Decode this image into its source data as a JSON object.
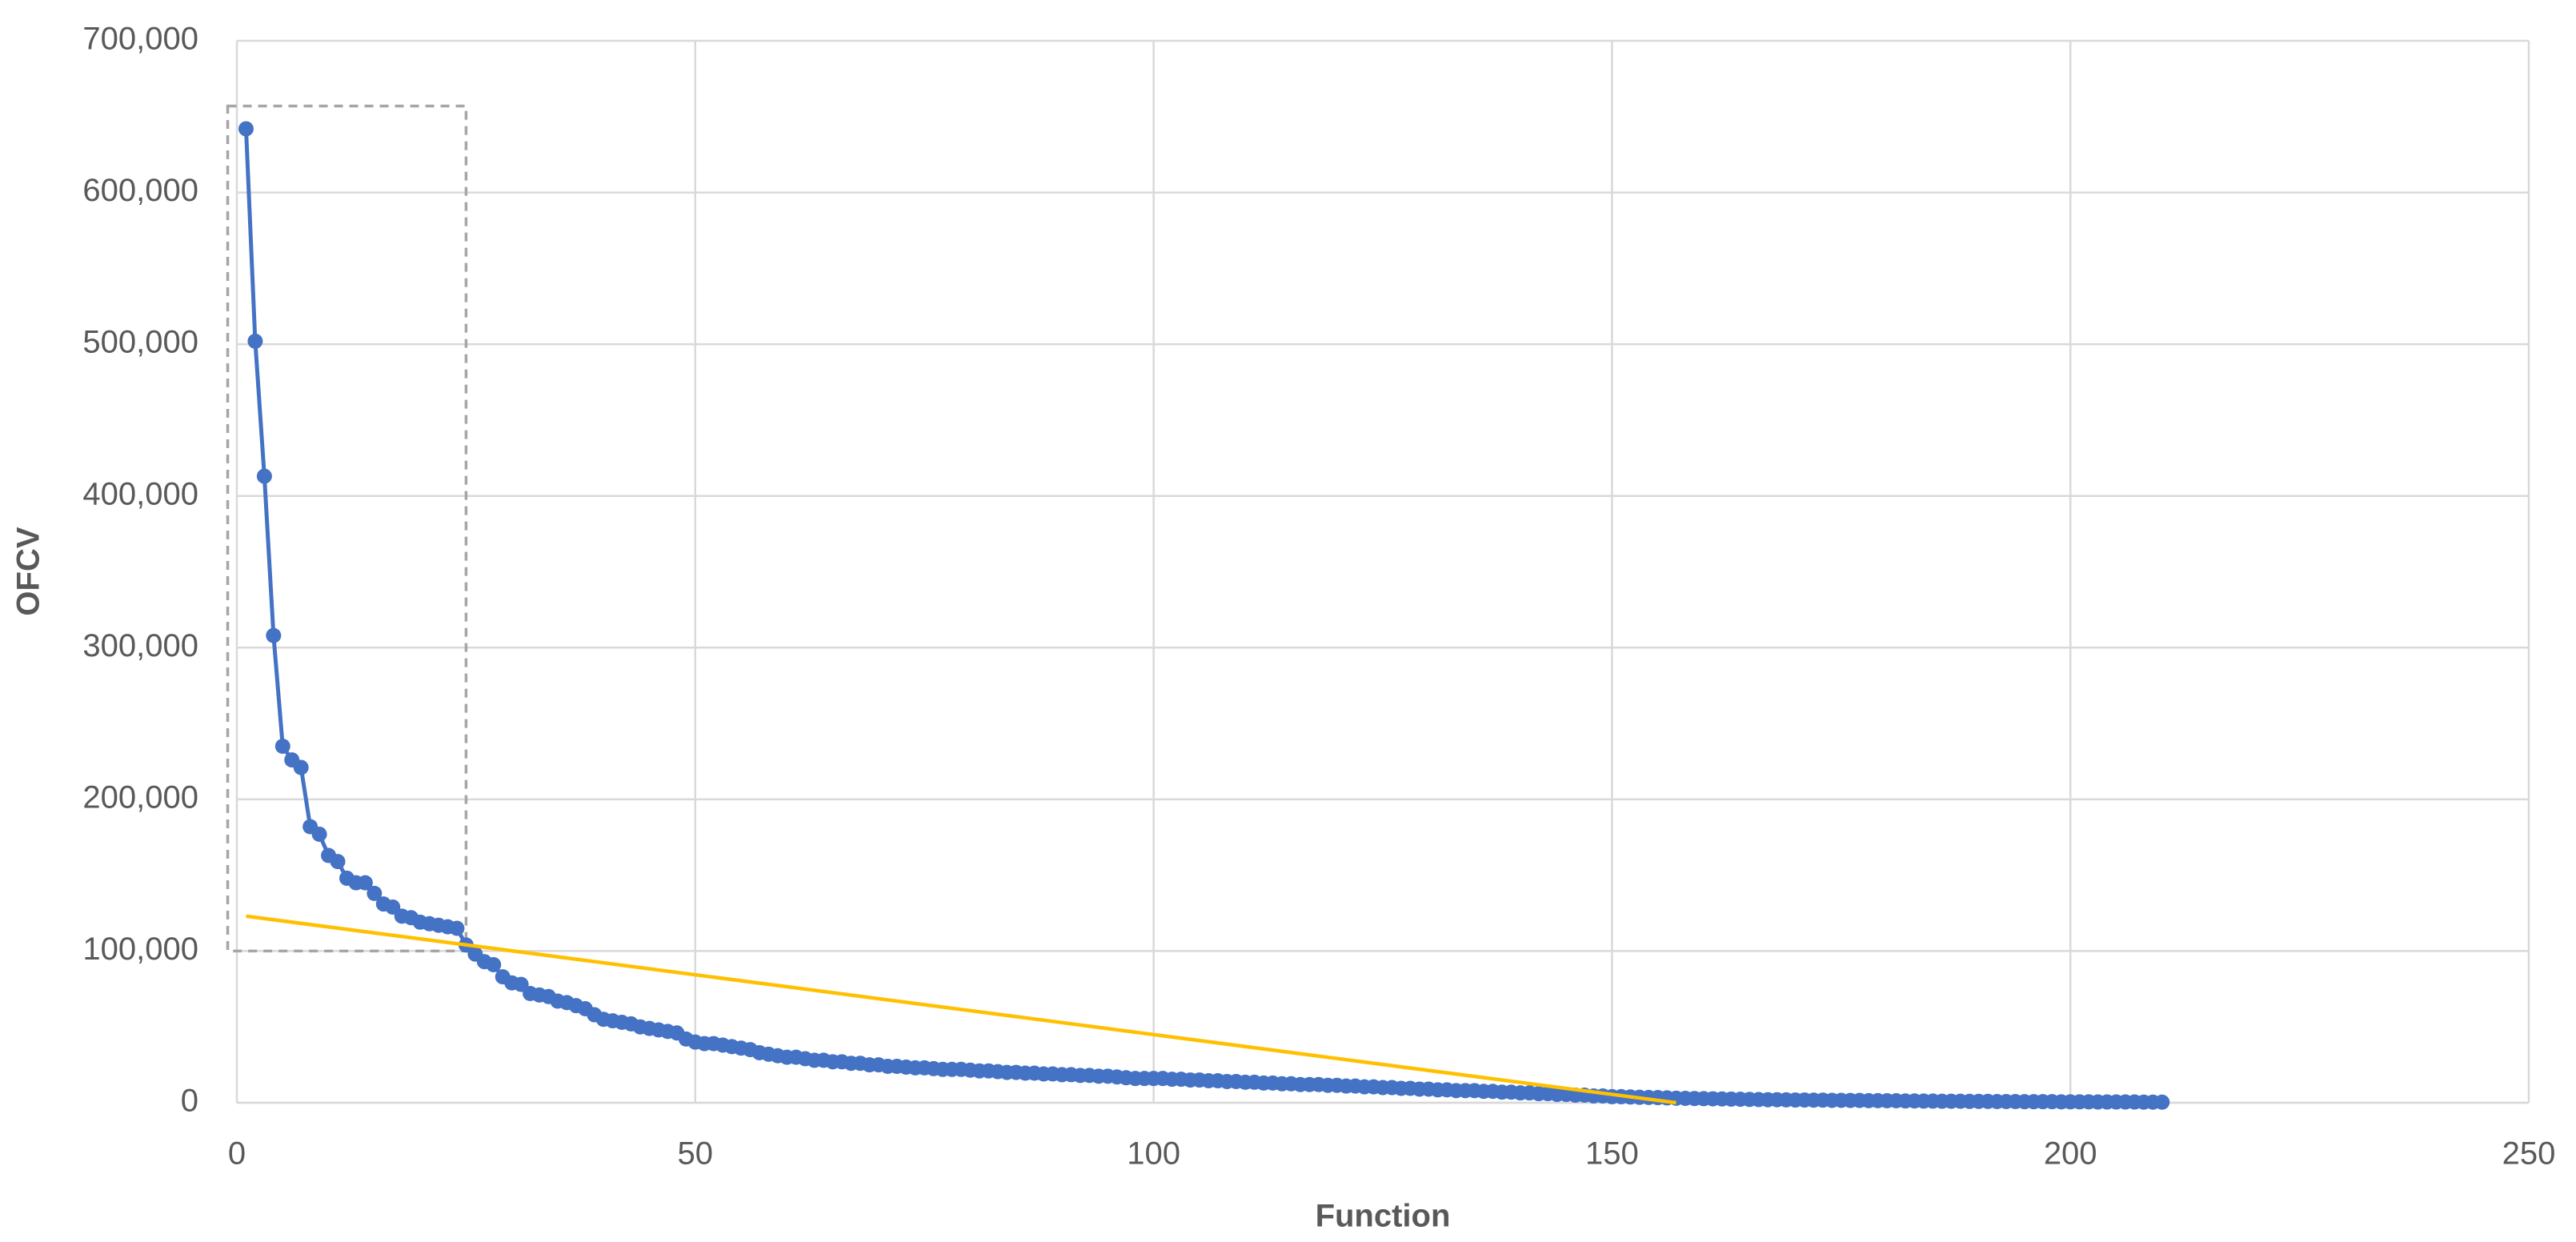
{
  "chart_data": {
    "type": "line",
    "xlabel": "Function",
    "ylabel": "OFCV",
    "xlim": [
      0,
      250
    ],
    "xticks": [
      0,
      50,
      100,
      150,
      200,
      250
    ],
    "ylim": [
      0,
      700000
    ],
    "yticks": [
      0,
      {
        "value": 100000,
        "label": "100,000"
      },
      {
        "value": 200000,
        "label": "200,000"
      },
      {
        "value": 300000,
        "label": "300,000"
      },
      {
        "value": 400000,
        "label": "400,000"
      },
      {
        "value": 500000,
        "label": "500,000"
      },
      {
        "value": 600000,
        "label": "600,000"
      },
      {
        "value": 700000,
        "label": "700,000"
      }
    ],
    "grid": true,
    "highlight_box": {
      "xlim": [
        -1,
        25
      ],
      "ylim": [
        100000,
        657000
      ],
      "color": "#a6a6a6"
    },
    "series": [
      {
        "color": "#4472c4",
        "markers": true,
        "x": [
          1,
          2,
          3,
          4,
          5,
          6,
          7,
          8,
          9,
          10,
          11,
          12,
          13,
          14,
          15,
          16,
          17,
          18,
          19,
          20,
          21,
          22,
          23,
          24,
          25,
          26,
          27,
          28,
          29,
          30,
          31,
          32,
          33,
          34,
          35,
          36,
          37,
          38,
          39,
          40,
          41,
          42,
          43,
          44,
          45,
          46,
          47,
          48,
          49,
          50,
          51,
          52,
          53,
          54,
          55,
          56,
          57,
          58,
          59,
          60,
          61,
          62,
          63,
          64,
          65,
          66,
          67,
          68,
          69,
          70,
          71,
          72,
          73,
          74,
          75,
          76,
          77,
          78,
          79,
          80,
          81,
          82,
          83,
          84,
          85,
          86,
          87,
          88,
          89,
          90,
          91,
          92,
          93,
          94,
          95,
          96,
          97,
          98,
          99,
          100,
          101,
          102,
          103,
          104,
          105,
          106,
          107,
          108,
          109,
          110,
          111,
          112,
          113,
          114,
          115,
          116,
          117,
          118,
          119,
          120,
          121,
          122,
          123,
          124,
          125,
          126,
          127,
          128,
          129,
          130,
          131,
          132,
          133,
          134,
          135,
          136,
          137,
          138,
          139,
          140,
          141,
          142,
          143,
          144,
          145,
          146,
          147,
          148,
          149,
          150,
          151,
          152,
          153,
          154,
          155,
          156,
          157,
          158,
          159,
          160,
          161,
          162,
          163,
          164,
          165,
          166,
          167,
          168,
          169,
          170,
          171,
          172,
          173,
          174,
          175,
          176,
          177,
          178,
          179,
          180,
          181,
          182,
          183,
          184,
          185,
          186,
          187,
          188,
          189,
          190,
          191,
          192,
          193,
          194,
          195,
          196,
          197,
          198,
          199,
          200,
          201,
          202,
          203,
          204,
          205,
          206,
          207,
          208,
          209,
          210
        ],
        "values": [
          642000,
          502000,
          413000,
          308000,
          235000,
          226000,
          221000,
          182000,
          177000,
          163000,
          159000,
          148000,
          145000,
          145000,
          138000,
          131000,
          129000,
          123000,
          122000,
          119000,
          118000,
          117000,
          116000,
          115000,
          104000,
          98000,
          93000,
          91000,
          83000,
          79000,
          78000,
          72000,
          71000,
          70000,
          67000,
          66000,
          64000,
          62000,
          58000,
          55000,
          54000,
          53000,
          52000,
          50000,
          49000,
          48000,
          47000,
          46000,
          42000,
          40000,
          39000,
          39000,
          38000,
          37000,
          36000,
          35000,
          33000,
          32000,
          31000,
          30000,
          30000,
          29000,
          28000,
          28000,
          27000,
          27000,
          26000,
          26000,
          25000,
          25000,
          24000,
          24000,
          23500,
          23000,
          23000,
          22500,
          22000,
          22000,
          22000,
          21500,
          21000,
          21000,
          20500,
          20000,
          20000,
          19500,
          19500,
          19000,
          19000,
          18500,
          18500,
          18000,
          18000,
          17500,
          17500,
          17000,
          16500,
          16000,
          16000,
          16000,
          16000,
          15500,
          15500,
          15000,
          15000,
          14500,
          14500,
          14000,
          14000,
          13500,
          13500,
          13000,
          13000,
          12500,
          12500,
          12000,
          12000,
          12000,
          11500,
          11500,
          11000,
          11000,
          10500,
          10500,
          10000,
          10000,
          9500,
          9500,
          9000,
          9000,
          8500,
          8500,
          8000,
          8000,
          8000,
          7500,
          7500,
          7000,
          7000,
          6500,
          6500,
          6000,
          6000,
          5500,
          5500,
          5000,
          5000,
          4500,
          4500,
          4000,
          4000,
          3800,
          3600,
          3500,
          3400,
          3200,
          3000,
          2900,
          2800,
          2700,
          2600,
          2500,
          2400,
          2300,
          2200,
          2100,
          2000,
          2000,
          1900,
          1800,
          1800,
          1700,
          1700,
          1600,
          1600,
          1500,
          1500,
          1400,
          1400,
          1300,
          1300,
          1200,
          1200,
          1100,
          1100,
          1000,
          1000,
          1000,
          900,
          900,
          900,
          800,
          800,
          800,
          700,
          700,
          700,
          700,
          600,
          600,
          600,
          600,
          500,
          500,
          500,
          500,
          500,
          400,
          400,
          400
        ]
      },
      {
        "color": "#ffc000",
        "markers": false,
        "x": [
          1,
          157
        ],
        "values": [
          123000,
          0
        ]
      }
    ]
  }
}
